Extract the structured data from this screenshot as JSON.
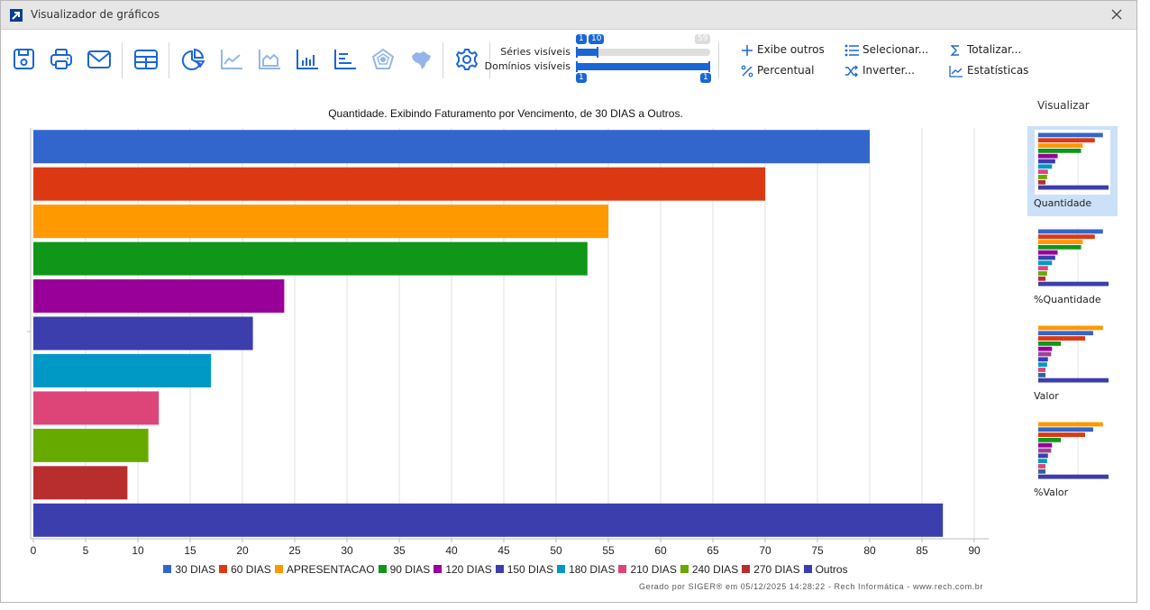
{
  "window": {
    "title": "Visualizador de gráficos"
  },
  "toolbar": {
    "icons": [
      "save-icon",
      "print-icon",
      "email-icon",
      "table-icon",
      "pie-chart-icon",
      "line-chart-icon",
      "area-chart-icon",
      "bar-chart-icon",
      "horizontal-bar-chart-icon",
      "radar-chart-icon",
      "map-brazil-icon",
      "settings-icon"
    ],
    "series_label": "Séries visíveis",
    "domains_label": "Domínios visíveis",
    "series_min": "1",
    "series_value": "10",
    "series_max": "59",
    "domains_min": "1",
    "domains_max": "1",
    "actions": [
      {
        "label": "Exibe outros",
        "icon": "plus-icon"
      },
      {
        "label": "Percentual",
        "icon": "percent-icon"
      },
      {
        "label": "Selecionar...",
        "icon": "list-icon"
      },
      {
        "label": "Inverter...",
        "icon": "shuffle-icon"
      },
      {
        "label": "Totalizar...",
        "icon": "sigma-icon"
      },
      {
        "label": "Estatísticas",
        "icon": "statistics-icon"
      }
    ]
  },
  "sidebar": {
    "title": "Visualizar",
    "thumbnails": [
      {
        "label": "Quantidade",
        "selected": true
      },
      {
        "label": "%Quantidade",
        "selected": false
      },
      {
        "label": "Valor",
        "selected": false
      },
      {
        "label": "%Valor",
        "selected": false
      }
    ]
  },
  "footer": "Gerado por SIGER® em 05/12/2025 14:28:22 - Rech Informática - www.rech.com.br",
  "chart_data": {
    "type": "bar",
    "orientation": "horizontal",
    "title": "Quantidade. Exibindo Faturamento por Vencimento, de 30 DIAS a Outros.",
    "xlabel": "",
    "ylabel": "",
    "xlim": [
      0,
      90
    ],
    "xticks": [
      0,
      5,
      10,
      15,
      20,
      25,
      30,
      35,
      40,
      45,
      50,
      55,
      60,
      65,
      70,
      75,
      80,
      85,
      90
    ],
    "grid": true,
    "legend_position": "bottom",
    "series": [
      {
        "name": "30 DIAS",
        "value": 80,
        "color": "#3366cc"
      },
      {
        "name": "60 DIAS",
        "value": 70,
        "color": "#dc3912"
      },
      {
        "name": "APRESENTACAO",
        "value": 55,
        "color": "#ff9900"
      },
      {
        "name": "90 DIAS",
        "value": 53,
        "color": "#109618"
      },
      {
        "name": "120 DIAS",
        "value": 24,
        "color": "#990099"
      },
      {
        "name": "150 DIAS",
        "value": 21,
        "color": "#3b3eac"
      },
      {
        "name": "180 DIAS",
        "value": 17,
        "color": "#0099c6"
      },
      {
        "name": "210 DIAS",
        "value": 12,
        "color": "#dd4477"
      },
      {
        "name": "240 DIAS",
        "value": 11,
        "color": "#66aa00"
      },
      {
        "name": "270 DIAS",
        "value": 9,
        "color": "#b82e2e"
      },
      {
        "name": "Outros",
        "value": 87,
        "color": "#3b3eac"
      }
    ]
  },
  "thumb_data": {
    "quantidade": [
      80,
      70,
      55,
      53,
      24,
      21,
      17,
      12,
      11,
      9,
      87
    ],
    "valor": [
      {
        "value": 80,
        "color": "#ff9900"
      },
      {
        "value": 68,
        "color": "#3366cc"
      },
      {
        "value": 58,
        "color": "#dc3912"
      },
      {
        "value": 28,
        "color": "#109618"
      },
      {
        "value": 17,
        "color": "#990099"
      },
      {
        "value": 16,
        "color": "#994499"
      },
      {
        "value": 12,
        "color": "#3b3eac"
      },
      {
        "value": 11,
        "color": "#0099c6"
      },
      {
        "value": 9,
        "color": "#dd4477"
      },
      {
        "value": 9,
        "color": "#316395"
      },
      {
        "value": 87,
        "color": "#3b3eac"
      }
    ]
  }
}
